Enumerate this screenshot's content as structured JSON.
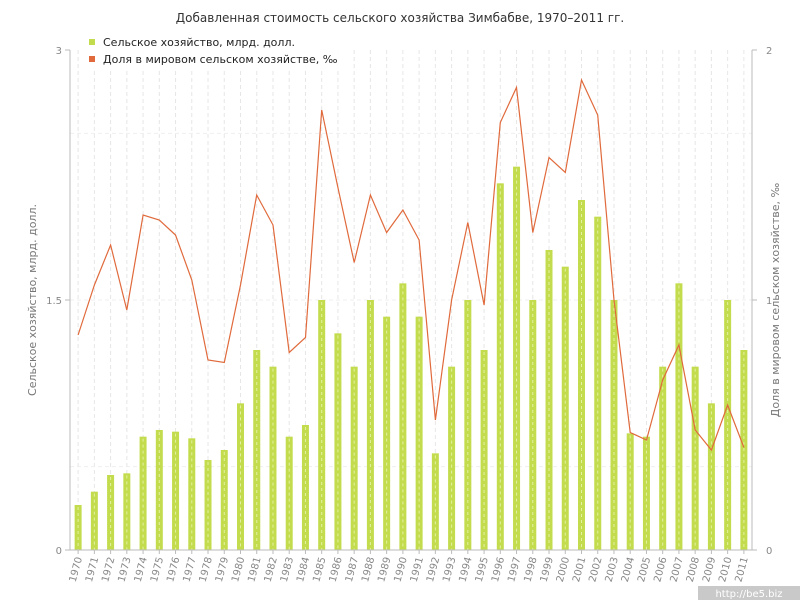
{
  "chart_data": {
    "type": "bar+line",
    "title": "Добавленная стоимость сельского хозяйства Зимбабве, 1970–2011 гг.",
    "ylabel_left": "Сельское хозяйство, млрд. долл.",
    "ylabel_right": "Доля в мировом сельском хозяйстве, ‰",
    "ylim_left": [
      0,
      3
    ],
    "ylim_right": [
      0,
      2
    ],
    "yticks_left": [
      "0",
      "1.5",
      "3"
    ],
    "yticks_right": [
      "0",
      "1",
      "2"
    ],
    "categories": [
      "1970",
      "1971",
      "1972",
      "1973",
      "1974",
      "1975",
      "1976",
      "1977",
      "1978",
      "1979",
      "1980",
      "1981",
      "1982",
      "1983",
      "1984",
      "1985",
      "1986",
      "1987",
      "1988",
      "1989",
      "1990",
      "1991",
      "1992",
      "1993",
      "1994",
      "1995",
      "1996",
      "1997",
      "1998",
      "1999",
      "2000",
      "2001",
      "2002",
      "2003",
      "2004",
      "2005",
      "2006",
      "2007",
      "2008",
      "2009",
      "2010",
      "2011"
    ],
    "series": [
      {
        "name": "Сельское хозяйство, млрд. долл.",
        "kind": "bar",
        "axis": "left",
        "color": "#c3dc4e",
        "values": [
          0.27,
          0.35,
          0.45,
          0.46,
          0.68,
          0.72,
          0.71,
          0.67,
          0.54,
          0.6,
          0.88,
          1.2,
          1.1,
          0.68,
          0.75,
          1.5,
          1.3,
          1.1,
          1.5,
          1.4,
          1.6,
          1.4,
          0.58,
          1.1,
          1.5,
          1.2,
          2.2,
          2.3,
          1.5,
          1.8,
          1.7,
          2.1,
          2.0,
          1.5,
          0.7,
          0.68,
          1.1,
          1.6,
          1.1,
          0.88,
          1.5,
          1.2
        ]
      },
      {
        "name": "Доля в мировом сельском хозяйстве, ‰",
        "kind": "line",
        "axis": "right",
        "color": "#e06a3c",
        "values": [
          0.86,
          1.06,
          1.22,
          0.96,
          1.34,
          1.32,
          1.26,
          1.08,
          0.76,
          0.75,
          1.06,
          1.42,
          1.3,
          0.79,
          0.85,
          1.76,
          1.45,
          1.15,
          1.42,
          1.27,
          1.36,
          1.24,
          0.52,
          1.0,
          1.31,
          0.98,
          1.71,
          1.85,
          1.27,
          1.57,
          1.51,
          1.88,
          1.74,
          1.0,
          0.47,
          0.44,
          0.68,
          0.82,
          0.48,
          0.4,
          0.58,
          0.41
        ]
      }
    ],
    "grid": true,
    "legend": "top-left"
  },
  "watermark": "http://be5.biz"
}
